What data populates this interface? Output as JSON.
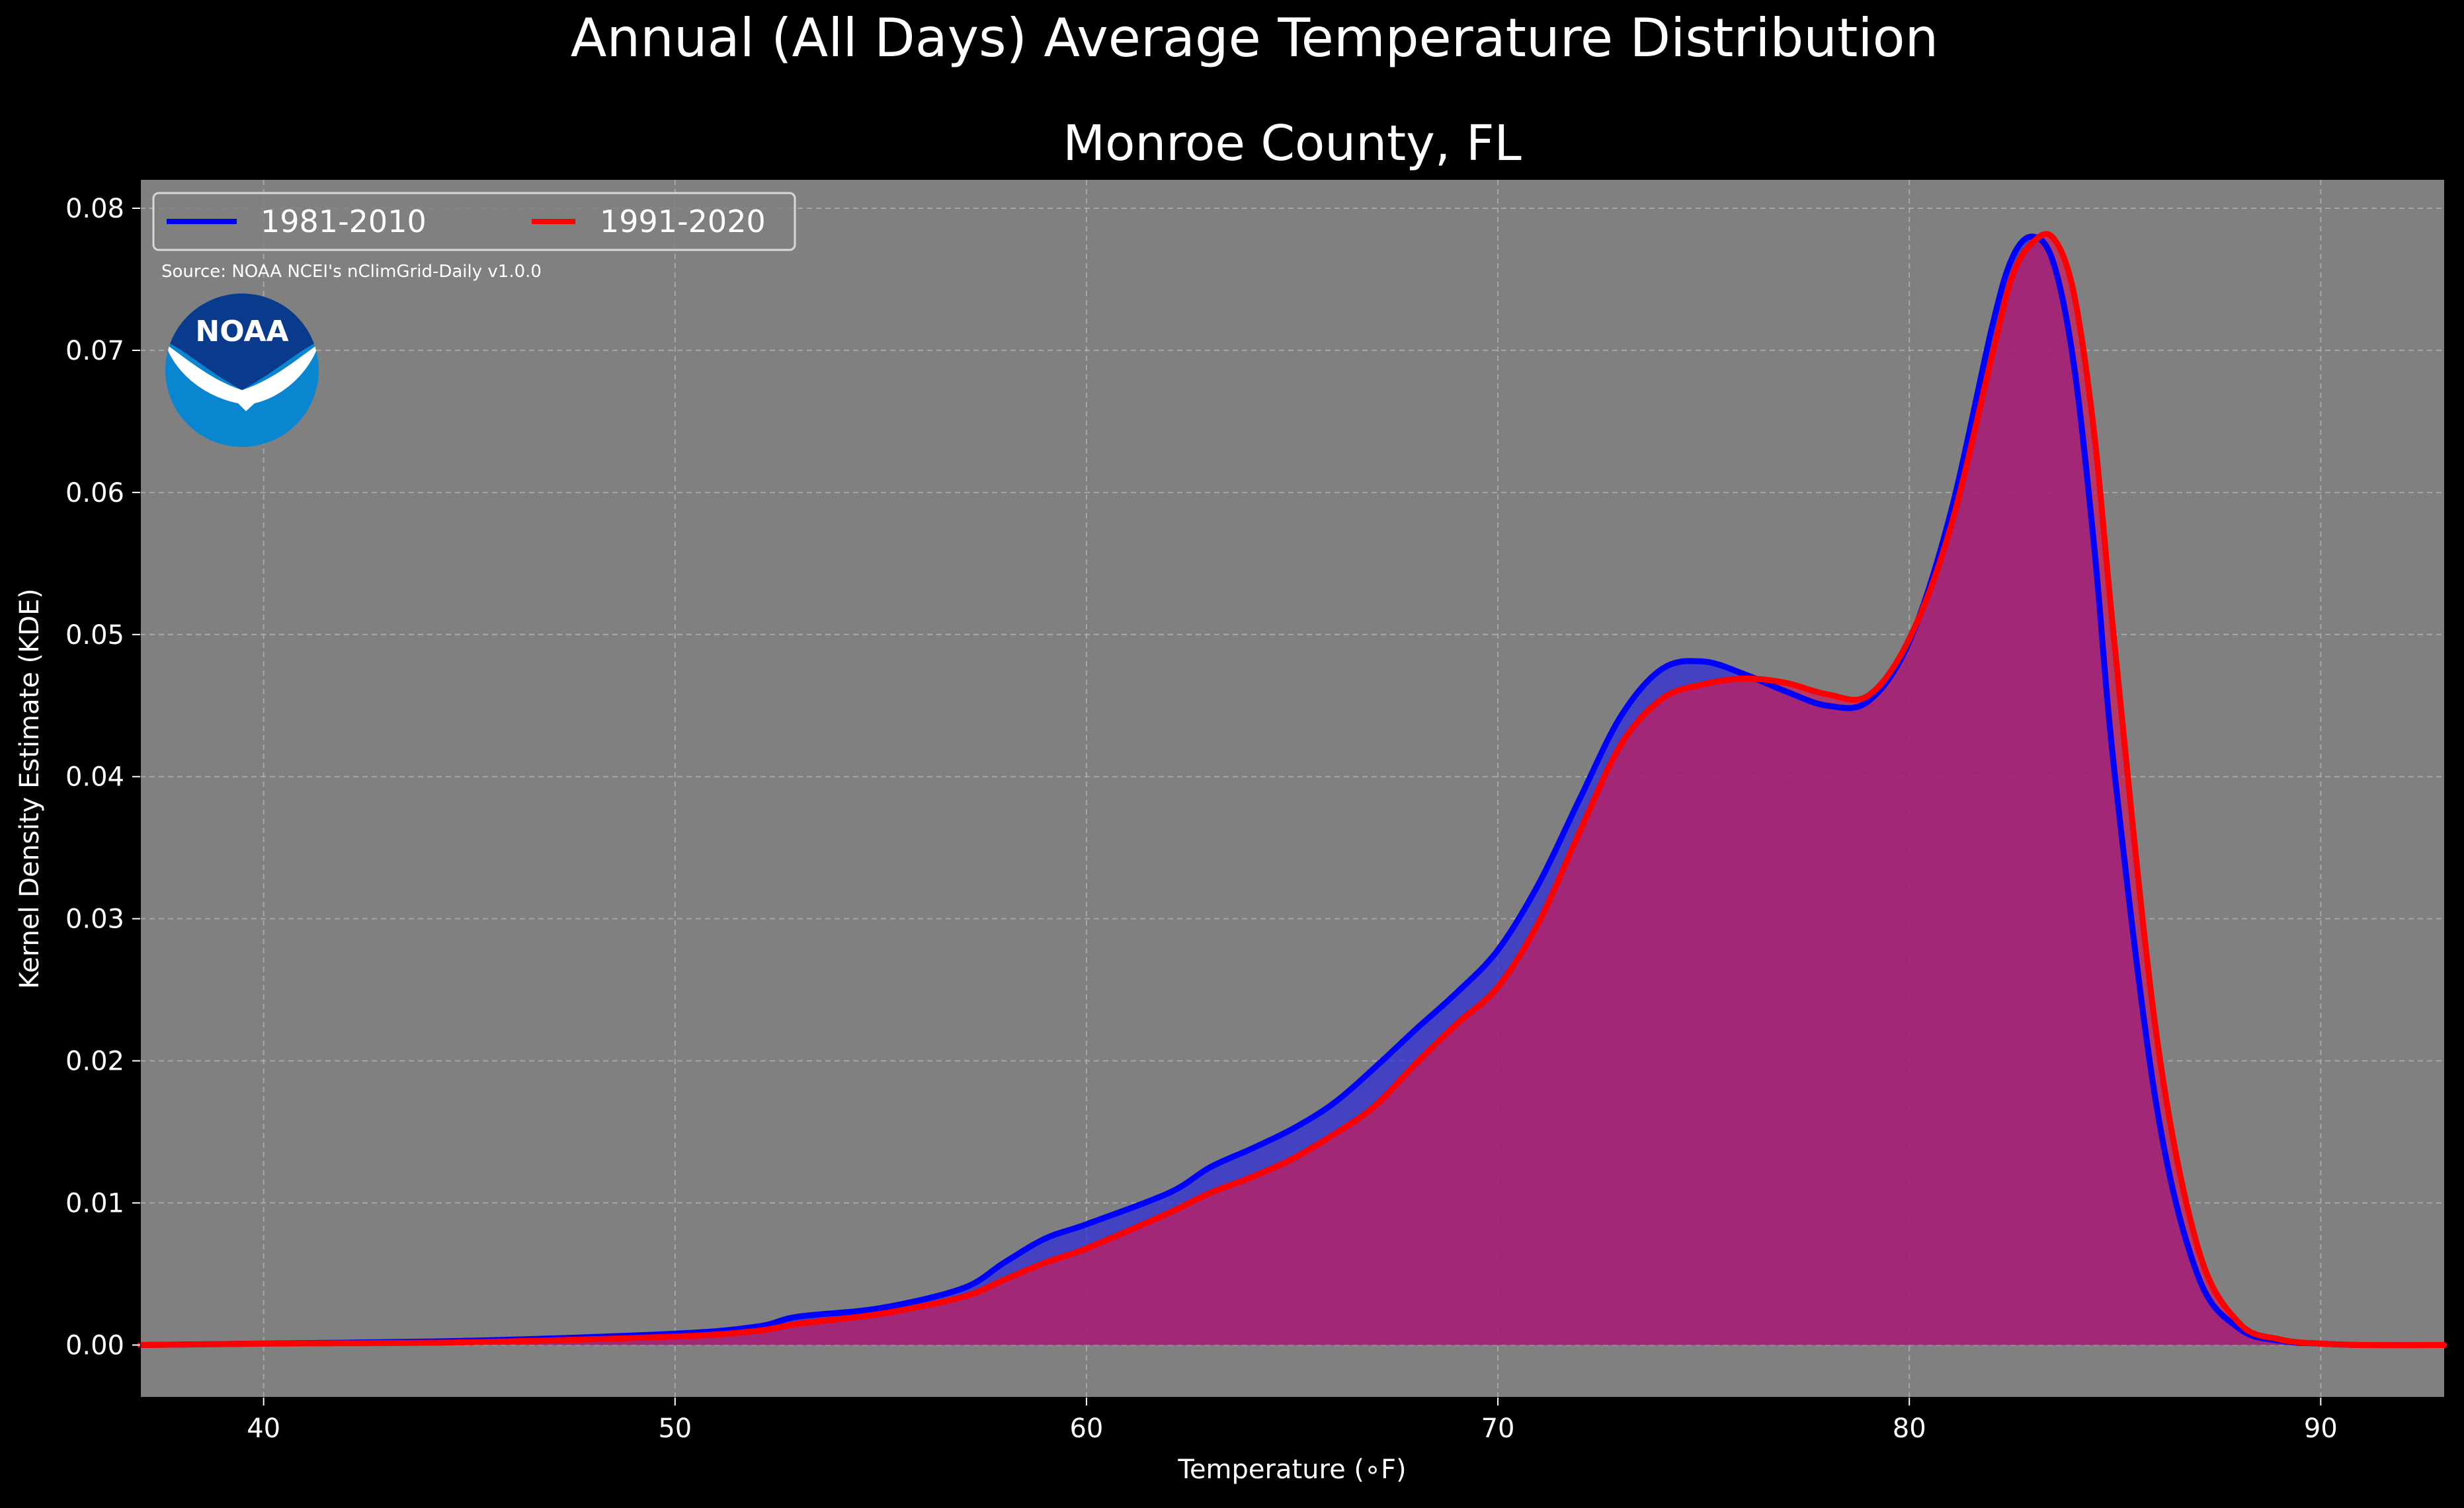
{
  "suptitle": "Annual (All Days) Average Temperature Distribution",
  "source_note": "Source: NOAA NCEI's nClimGrid-Daily v1.0.0",
  "logo_text": "NOAA",
  "colors": {
    "figure_background": "#000000",
    "axes_background": "#808080",
    "text": "#ffffff",
    "grid": "#b0b0b0",
    "series_1981_2010": "#0000ff",
    "series_1991_2020": "#ff0000",
    "fill_1981_2010": "#2f2fd8",
    "fill_1991_2020": "#c81e5a",
    "logo_dark": "#0a3a8c",
    "logo_light": "#0a86d0"
  },
  "chart_data": {
    "type": "area",
    "title": "Monroe County, FL",
    "xlabel": "Temperature (∘F)",
    "ylabel": "Kernel Density Estimate (KDE)",
    "xlim": [
      37,
      93
    ],
    "ylim": [
      -0.0037,
      0.082
    ],
    "x_ticks": [
      40,
      50,
      60,
      70,
      80,
      90
    ],
    "y_ticks": [
      0.0,
      0.01,
      0.02,
      0.03,
      0.04,
      0.05,
      0.06,
      0.07,
      0.08
    ],
    "y_tick_labels": [
      "0.00",
      "0.01",
      "0.02",
      "0.03",
      "0.04",
      "0.05",
      "0.06",
      "0.07",
      "0.08"
    ],
    "grid": true,
    "legend": {
      "position": "top-left",
      "columns": 2
    },
    "series": [
      {
        "name": "1981-2010",
        "color": "#0000ff",
        "x": [
          37,
          40,
          45,
          50,
          52,
          53,
          55,
          57,
          58,
          59,
          60,
          62,
          63,
          64,
          65,
          66,
          67,
          68,
          69,
          70,
          71,
          72,
          73,
          74,
          75,
          76,
          77,
          78,
          79,
          80,
          81,
          82,
          82.5,
          83,
          83.5,
          84,
          84.5,
          85,
          86,
          87,
          88,
          89,
          90,
          91,
          93
        ],
        "y": [
          0.0,
          0.0001,
          0.0003,
          0.0008,
          0.0013,
          0.002,
          0.0026,
          0.004,
          0.0058,
          0.0075,
          0.0085,
          0.0107,
          0.0125,
          0.0138,
          0.0152,
          0.017,
          0.0195,
          0.0222,
          0.0248,
          0.0278,
          0.0325,
          0.0385,
          0.0443,
          0.0476,
          0.0481,
          0.0472,
          0.046,
          0.045,
          0.0453,
          0.0495,
          0.0585,
          0.0715,
          0.0765,
          0.078,
          0.0762,
          0.069,
          0.056,
          0.04,
          0.017,
          0.005,
          0.0012,
          0.0003,
          0.0001,
          0.0,
          0.0
        ]
      },
      {
        "name": "1991-2020",
        "color": "#ff0000",
        "x": [
          37,
          40,
          45,
          50,
          52,
          53,
          55,
          57,
          58,
          59,
          60,
          62,
          63,
          64,
          65,
          66,
          67,
          68,
          69,
          70,
          71,
          72,
          73,
          74,
          75,
          76,
          77,
          78,
          79,
          80,
          81,
          82,
          82.5,
          83,
          83.5,
          84,
          84.5,
          85,
          86,
          87,
          88,
          89,
          90,
          91,
          93
        ],
        "y": [
          0.0,
          0.0001,
          0.0002,
          0.0006,
          0.001,
          0.0015,
          0.0022,
          0.0034,
          0.0046,
          0.0058,
          0.0068,
          0.0093,
          0.0107,
          0.0118,
          0.0131,
          0.0148,
          0.0168,
          0.0198,
          0.0226,
          0.0252,
          0.0298,
          0.0362,
          0.0423,
          0.0455,
          0.0465,
          0.0469,
          0.0466,
          0.0458,
          0.0457,
          0.0497,
          0.0575,
          0.0695,
          0.0752,
          0.0776,
          0.0779,
          0.074,
          0.064,
          0.049,
          0.022,
          0.007,
          0.0016,
          0.0004,
          0.0001,
          0.0,
          0.0
        ]
      }
    ]
  }
}
